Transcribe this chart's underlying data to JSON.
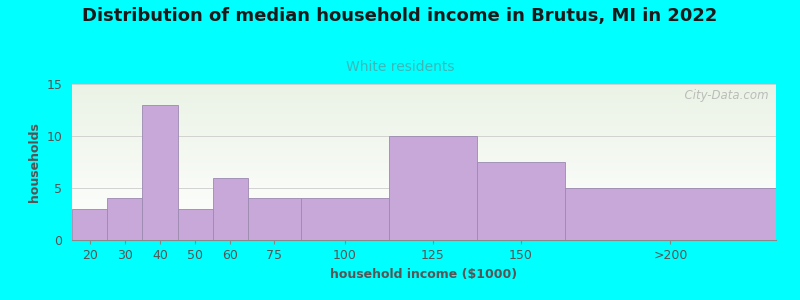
{
  "title": "Distribution of median household income in Brutus, MI in 2022",
  "subtitle": "White residents",
  "xlabel": "household income ($1000)",
  "ylabel": "households",
  "background_color": "#00FFFF",
  "bar_color": "#c8a8d8",
  "bar_edge_color": "#9b8ab0",
  "categories": [
    "20",
    "30",
    "40",
    "50",
    "60",
    "75",
    "100",
    "125",
    "150",
    ">200"
  ],
  "values": [
    3,
    4,
    13,
    3,
    6,
    4,
    4,
    10,
    7.5,
    5
  ],
  "edges": [
    10,
    20,
    30,
    40,
    50,
    60,
    75,
    100,
    125,
    150,
    210
  ],
  "ylim": [
    0,
    15
  ],
  "yticks": [
    0,
    5,
    10,
    15
  ],
  "title_fontsize": 13,
  "subtitle_fontsize": 10,
  "xlabel_fontsize": 9,
  "ylabel_fontsize": 9,
  "tick_fontsize": 9,
  "subtitle_color": "#3ab8b8",
  "title_color": "#1a1a1a",
  "axis_color": "#555555",
  "watermark": "  City-Data.com"
}
